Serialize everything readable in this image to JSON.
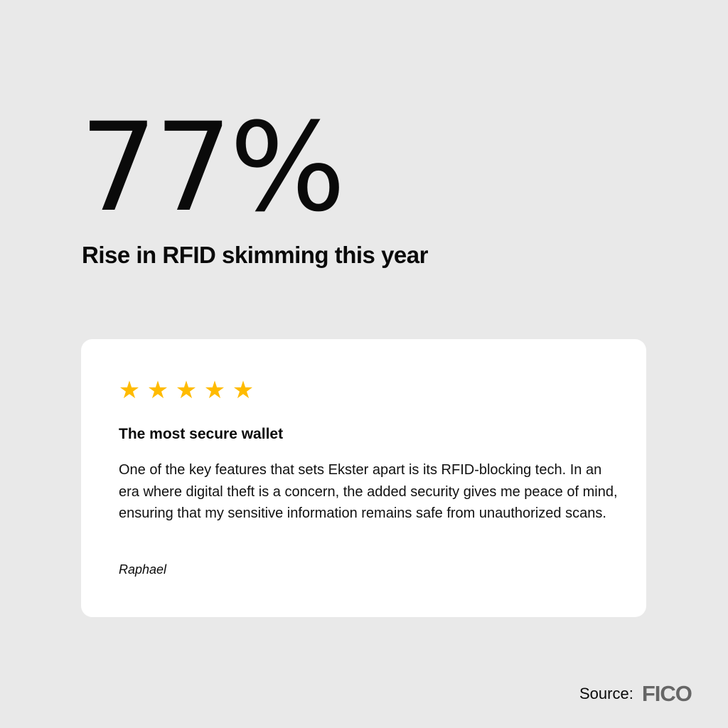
{
  "headline": {
    "stat": "77%",
    "subtitle": "Rise in RFID skimming this year"
  },
  "review": {
    "rating": 5,
    "max_rating": 5,
    "star_color": "#ffbb00",
    "stars": [
      "★",
      "★",
      "★",
      "★",
      "★"
    ],
    "title": "The most secure wallet",
    "body": "One of the key features that sets Ekster apart is its RFID-blocking tech. In an era where digital theft is a concern, the added security gives me peace of mind, ensuring that my sensitive information remains safe from unauthorized scans.",
    "author": "Raphael"
  },
  "source": {
    "label": "Source:",
    "logo": "FICO"
  }
}
